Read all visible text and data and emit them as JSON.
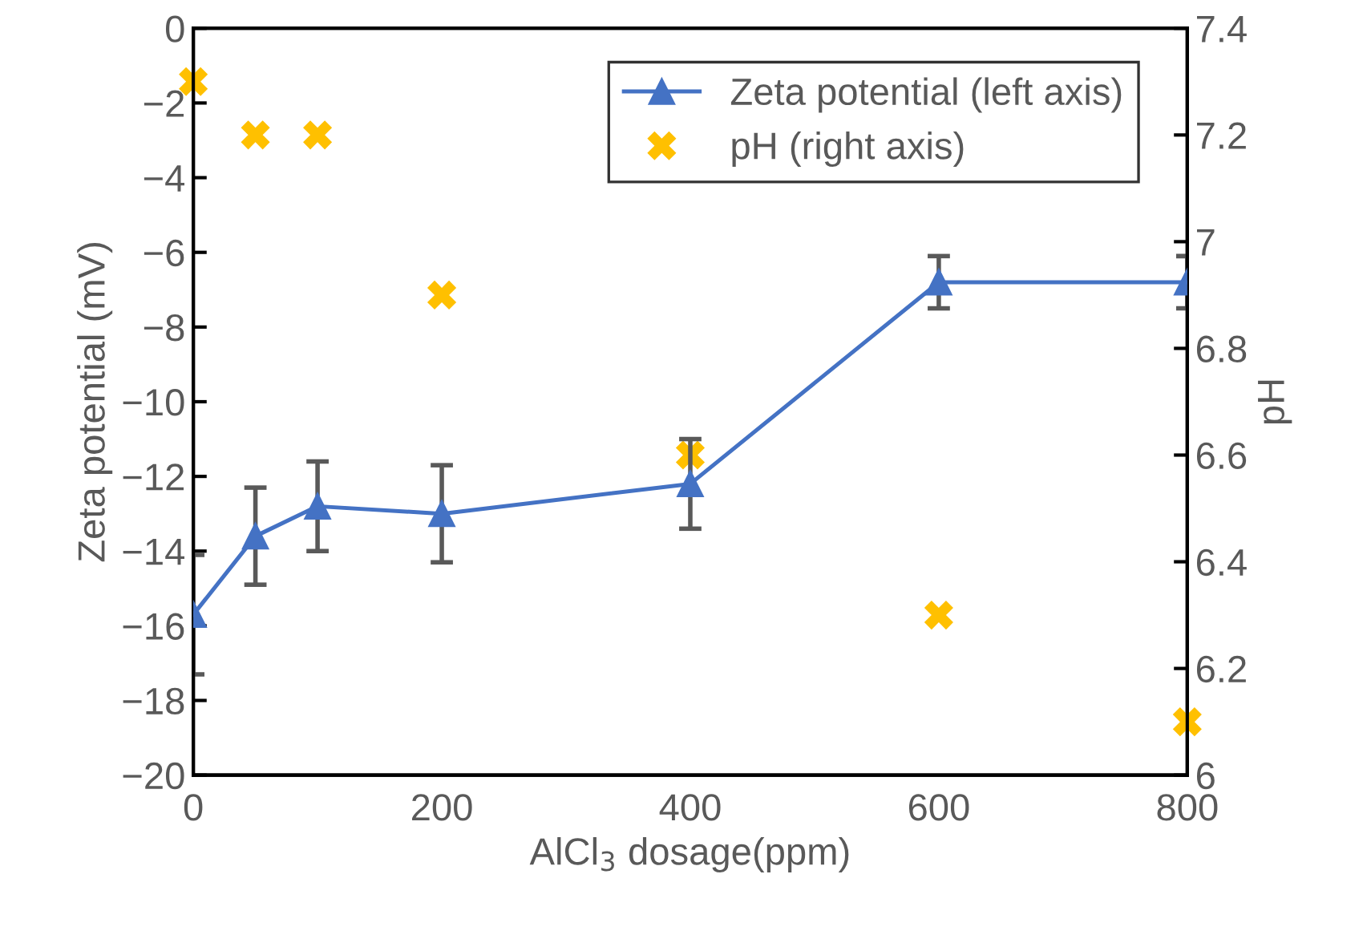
{
  "chart_data": {
    "type": "line",
    "xlabel": "AlCl$_{3}$ dosage(ppm)",
    "ylabel": "Zeta potential (mV)",
    "y2label": "pH",
    "x": [
      0,
      50,
      100,
      200,
      400,
      600,
      800
    ],
    "series": [
      {
        "name": "Zeta potential (left axis)",
        "color": "#4472c4",
        "marker": "triangle",
        "values": [
          -15.7,
          -13.6,
          -12.8,
          -13.0,
          -12.2,
          -6.8,
          -6.8
        ],
        "errors": [
          1.6,
          1.3,
          1.2,
          1.3,
          1.2,
          0.7,
          0.7
        ]
      },
      {
        "name": "pH (right axis)",
        "type": "scatter",
        "axis": "y2",
        "color": "#ffc000",
        "marker": "cross",
        "values": [
          7.3,
          7.2,
          7.2,
          6.9,
          6.6,
          6.3,
          6.1
        ]
      }
    ],
    "xlim": [
      0,
      800
    ],
    "xticks": [
      0,
      200,
      400,
      600,
      800
    ],
    "ylim": [
      -20,
      0
    ],
    "yticks": [
      -20,
      -18,
      -16,
      -14,
      -12,
      -10,
      -8,
      -6,
      -4,
      -2,
      0
    ],
    "y2lim": [
      6,
      7.4
    ],
    "y2ticks": [
      {
        "value": 6,
        "label": "6"
      },
      6.2,
      6.4,
      6.6,
      6.8,
      {
        "value": 7,
        "label": "7"
      },
      7.2,
      7.4
    ],
    "grid": false,
    "legend": "top right"
  }
}
